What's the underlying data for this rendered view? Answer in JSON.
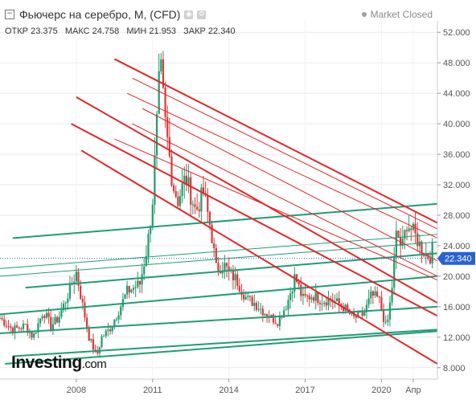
{
  "header": {
    "title": "Фьючерс на серебро, M, (CFD)",
    "status": "Market Closed",
    "ohlc": [
      {
        "label": "ОТКР",
        "value": "23.375"
      },
      {
        "label": "МАКС",
        "value": "24.758"
      },
      {
        "label": "МИН",
        "value": "21.953"
      },
      {
        "label": "ЗАКР",
        "value": "22.340"
      }
    ]
  },
  "logo": {
    "brand": "Investing",
    "suffix": ".com"
  },
  "colors": {
    "up": "#1f9c6a",
    "down": "#d73a3a",
    "red_line": "#e3262a",
    "green_line": "#1f9c75",
    "price_tag": "#2962d4",
    "grid": "#eaeaea",
    "axis": "#555555"
  },
  "chart_data": {
    "type": "candlestick",
    "interval": "monthly",
    "current_price": 22.34,
    "current_price_label": "22.340",
    "x_range": [
      2005.0,
      2022.2
    ],
    "ylim": [
      6.5,
      53.5
    ],
    "y_ticks": [
      8,
      12,
      16,
      20,
      24,
      28,
      32,
      36,
      40,
      44,
      48,
      52
    ],
    "y_tick_labels": [
      "8.000",
      "12.000",
      "16.000",
      "20.000",
      "24.000",
      "28.000",
      "32.000",
      "36.000",
      "40.000",
      "44.000",
      "48.000",
      "52.000"
    ],
    "x_ticks": [
      {
        "label": "2008",
        "x": 2008.0
      },
      {
        "label": "2011",
        "x": 2011.0
      },
      {
        "label": "2014",
        "x": 2014.0
      },
      {
        "label": "2017",
        "x": 2017.0
      },
      {
        "label": "2020",
        "x": 2020.0
      },
      {
        "label": "Апр",
        "x": 2021.25
      }
    ],
    "anchors": [
      [
        2005.0,
        14.5
      ],
      [
        2005.5,
        13.0
      ],
      [
        2006.0,
        13.5
      ],
      [
        2006.3,
        12.0
      ],
      [
        2006.7,
        15.5
      ],
      [
        2007.0,
        13.5
      ],
      [
        2007.3,
        14.5
      ],
      [
        2007.6,
        17.0
      ],
      [
        2008.0,
        20.5
      ],
      [
        2008.2,
        17.0
      ],
      [
        2008.5,
        12.0
      ],
      [
        2008.8,
        9.5
      ],
      [
        2009.0,
        12.0
      ],
      [
        2009.3,
        13.0
      ],
      [
        2009.6,
        15.0
      ],
      [
        2010.0,
        18.0
      ],
      [
        2010.5,
        19.0
      ],
      [
        2010.8,
        24.0
      ],
      [
        2011.0,
        30.0
      ],
      [
        2011.3,
        48.0
      ],
      [
        2011.5,
        40.0
      ],
      [
        2011.8,
        32.0
      ],
      [
        2012.0,
        30.0
      ],
      [
        2012.3,
        33.0
      ],
      [
        2012.7,
        28.5
      ],
      [
        2013.0,
        31.0
      ],
      [
        2013.3,
        26.0
      ],
      [
        2013.5,
        21.0
      ],
      [
        2013.8,
        21.5
      ],
      [
        2014.0,
        20.5
      ],
      [
        2014.3,
        19.5
      ],
      [
        2014.7,
        17.0
      ],
      [
        2015.0,
        16.5
      ],
      [
        2015.5,
        15.0
      ],
      [
        2015.9,
        14.0
      ],
      [
        2016.3,
        16.5
      ],
      [
        2016.6,
        20.0
      ],
      [
        2016.9,
        17.0
      ],
      [
        2017.3,
        17.5
      ],
      [
        2017.7,
        16.8
      ],
      [
        2018.0,
        17.0
      ],
      [
        2018.5,
        16.0
      ],
      [
        2018.9,
        14.5
      ],
      [
        2019.3,
        15.0
      ],
      [
        2019.6,
        17.5
      ],
      [
        2019.9,
        17.0
      ],
      [
        2020.2,
        13.0
      ],
      [
        2020.4,
        18.0
      ],
      [
        2020.6,
        26.0
      ],
      [
        2020.8,
        23.5
      ],
      [
        2021.0,
        27.0
      ],
      [
        2021.3,
        25.5
      ],
      [
        2021.6,
        23.5
      ],
      [
        2021.9,
        22.5
      ],
      [
        2022.0,
        23.5
      ]
    ],
    "red_channel": [
      {
        "x1": 2009.5,
        "y1": 48.5,
        "x2": 2022.2,
        "y2": 27.0,
        "width": 2
      },
      {
        "x1": 2010.2,
        "y1": 46.0,
        "x2": 2022.2,
        "y2": 26.2,
        "width": 1
      },
      {
        "x1": 2010.0,
        "y1": 44.0,
        "x2": 2022.2,
        "y2": 25.0,
        "width": 1
      },
      {
        "x1": 2010.6,
        "y1": 42.0,
        "x2": 2022.2,
        "y2": 22.0,
        "width": 1
      },
      {
        "x1": 2010.2,
        "y1": 40.0,
        "x2": 2022.2,
        "y2": 20.0,
        "width": 1
      },
      {
        "x1": 2009.5,
        "y1": 38.0,
        "x2": 2022.2,
        "y2": 19.5,
        "width": 1
      },
      {
        "x1": 2008.0,
        "y1": 43.5,
        "x2": 2022.2,
        "y2": 16.5,
        "width": 2
      },
      {
        "x1": 2007.8,
        "y1": 40.0,
        "x2": 2022.2,
        "y2": 14.8,
        "width": 2
      },
      {
        "x1": 2008.2,
        "y1": 36.5,
        "x2": 2022.2,
        "y2": 8.5,
        "width": 2
      }
    ],
    "green_channel": [
      {
        "x1": 2005.5,
        "y1": 25.0,
        "x2": 2022.2,
        "y2": 29.5,
        "width": 2
      },
      {
        "x1": 2005.0,
        "y1": 21.0,
        "x2": 2022.2,
        "y2": 25.5,
        "width": 1
      },
      {
        "x1": 2005.0,
        "y1": 20.0,
        "x2": 2022.2,
        "y2": 24.5,
        "width": 1
      },
      {
        "x1": 2006.0,
        "y1": 18.5,
        "x2": 2022.2,
        "y2": 23.0,
        "width": 2
      },
      {
        "x1": 2005.0,
        "y1": 15.0,
        "x2": 2022.2,
        "y2": 20.0,
        "width": 2
      },
      {
        "x1": 2005.0,
        "y1": 12.5,
        "x2": 2022.2,
        "y2": 16.0,
        "width": 2
      },
      {
        "x1": 2005.5,
        "y1": 9.5,
        "x2": 2022.2,
        "y2": 13.0,
        "width": 2
      },
      {
        "x1": 2005.2,
        "y1": 8.5,
        "x2": 2022.2,
        "y2": 12.8,
        "width": 2
      }
    ]
  }
}
